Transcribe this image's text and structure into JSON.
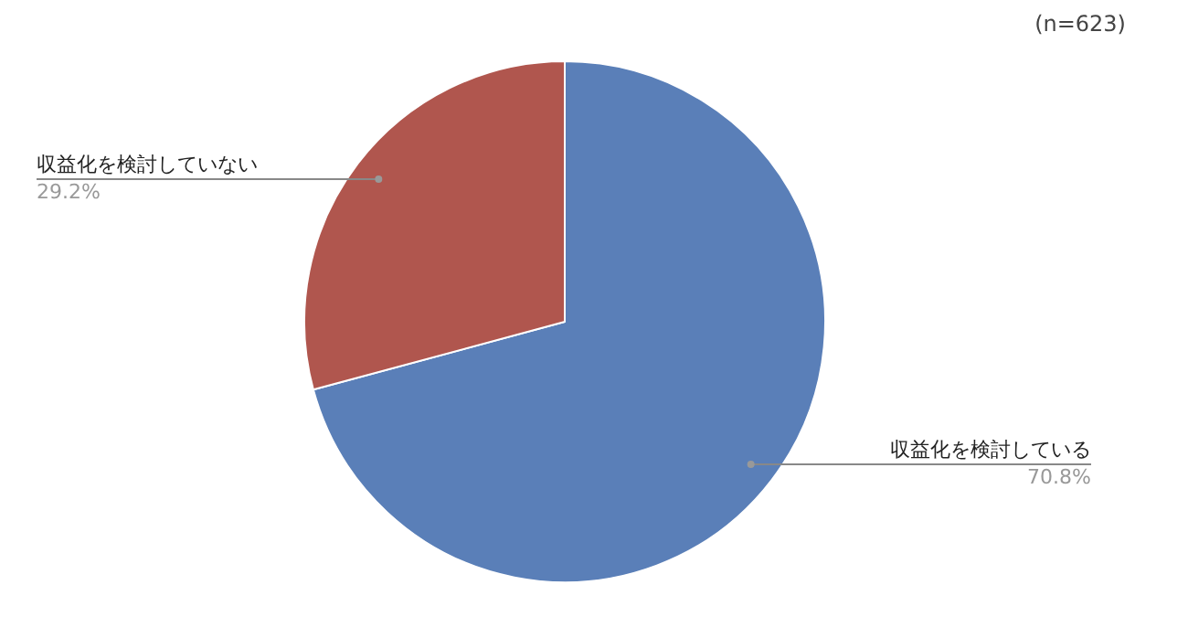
{
  "chart_data": {
    "type": "pie",
    "categories": [
      "収益化を検討している",
      "収益化を検討していない"
    ],
    "values": [
      70.8,
      29.2
    ],
    "colors": [
      "#5a7fb8",
      "#b0564e"
    ],
    "value_labels": [
      "70.8%",
      "29.2%"
    ],
    "annotations": [
      "(n=623)"
    ],
    "legend": false
  }
}
